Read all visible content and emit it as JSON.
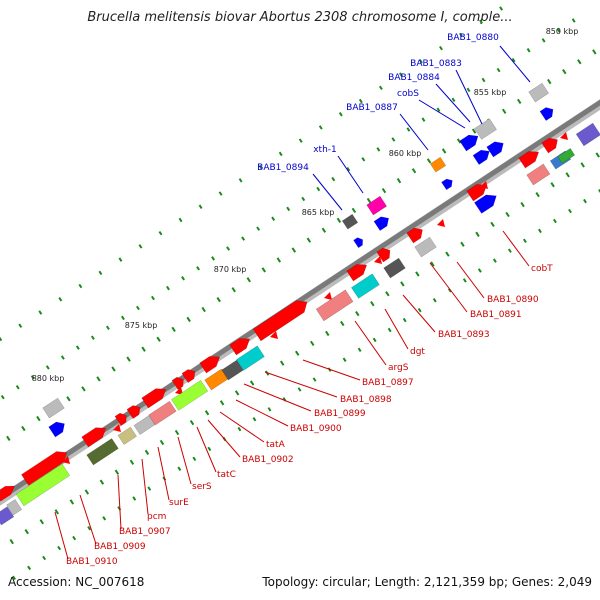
{
  "title": "Brucella melitensis biovar Abortus 2308 chromosome I, comple...",
  "footer": {
    "accession": "Accession: NC_007618",
    "summary": "Topology: circular; Length: 2,121,359 bp; Genes: 2,049"
  },
  "colors": {
    "forward_label": "#0000cc",
    "reverse_label": "#cc0000",
    "backbone": "#808080",
    "tick": "#1a8a1a",
    "red": "#ff0000",
    "blue": "#0000ff",
    "lightred": "#f08080",
    "lime": "#99ff33",
    "gray": "#bbbbbb",
    "darkgray": "#555555",
    "cyan": "#00cccc",
    "orange": "#ff8800",
    "magenta": "#ff00aa",
    "olive": "#556b2f",
    "khaki": "#c8c080",
    "slate": "#6a5acd",
    "steelblue": "#3a7acc",
    "green": "#33aa33"
  },
  "scale_labels": [
    "850 kbp",
    "855 kbp",
    "860 kbp",
    "865 kbp",
    "870 kbp",
    "875 kbp",
    "880 kbp"
  ],
  "forward_gene_labels": [
    "BAB1_0880",
    "BAB1_0883",
    "BAB1_0884",
    "cobS",
    "BAB1_0887",
    "xth-1",
    "BAB1_0894"
  ],
  "reverse_gene_labels": [
    "cobT",
    "BAB1_0890",
    "BAB1_0891",
    "BAB1_0893",
    "dgt",
    "argS",
    "BAB1_0897",
    "BAB1_0898",
    "BAB1_0899",
    "BAB1_0900",
    "tatA",
    "BAB1_0902",
    "tatC",
    "serS",
    "surE",
    "pcm",
    "BAB1_0907",
    "BAB1_0909",
    "BAB1_0910"
  ]
}
